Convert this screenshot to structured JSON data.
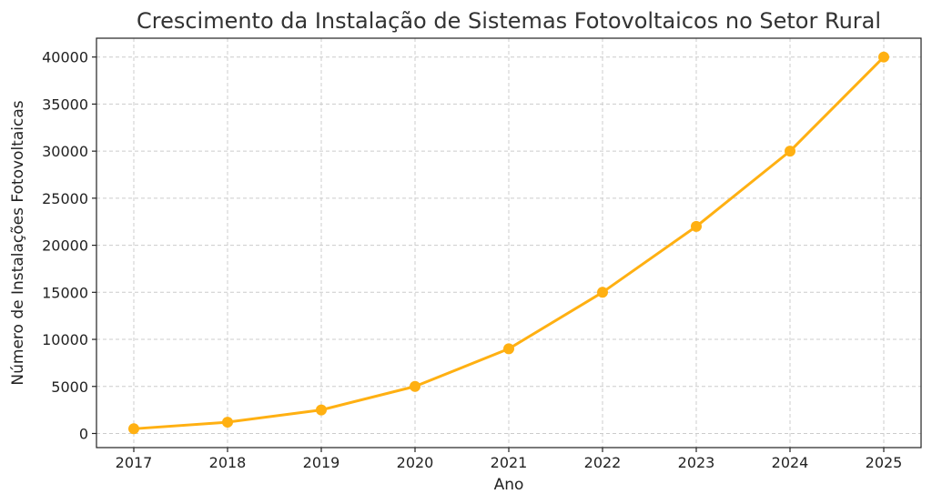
{
  "chart_data": {
    "type": "line",
    "title": "Crescimento da Instalação de Sistemas Fotovoltaicos no Setor Rural",
    "xlabel": "Ano",
    "ylabel": "Número de Instalações Fotovoltaicas",
    "x": [
      "2017",
      "2018",
      "2019",
      "2020",
      "2021",
      "2022",
      "2023",
      "2024",
      "2025"
    ],
    "series": [
      {
        "values": [
          500,
          1200,
          2500,
          5000,
          9000,
          15000,
          22000,
          30000,
          40000
        ]
      }
    ],
    "yticks": [
      "0",
      "5000",
      "10000",
      "15000",
      "20000",
      "25000",
      "30000",
      "35000",
      "40000"
    ],
    "ylim": [
      -1500,
      42000
    ],
    "grid": true,
    "legend": "none",
    "colors": {
      "line": "#FFB012",
      "marker": "#FFB012"
    }
  }
}
